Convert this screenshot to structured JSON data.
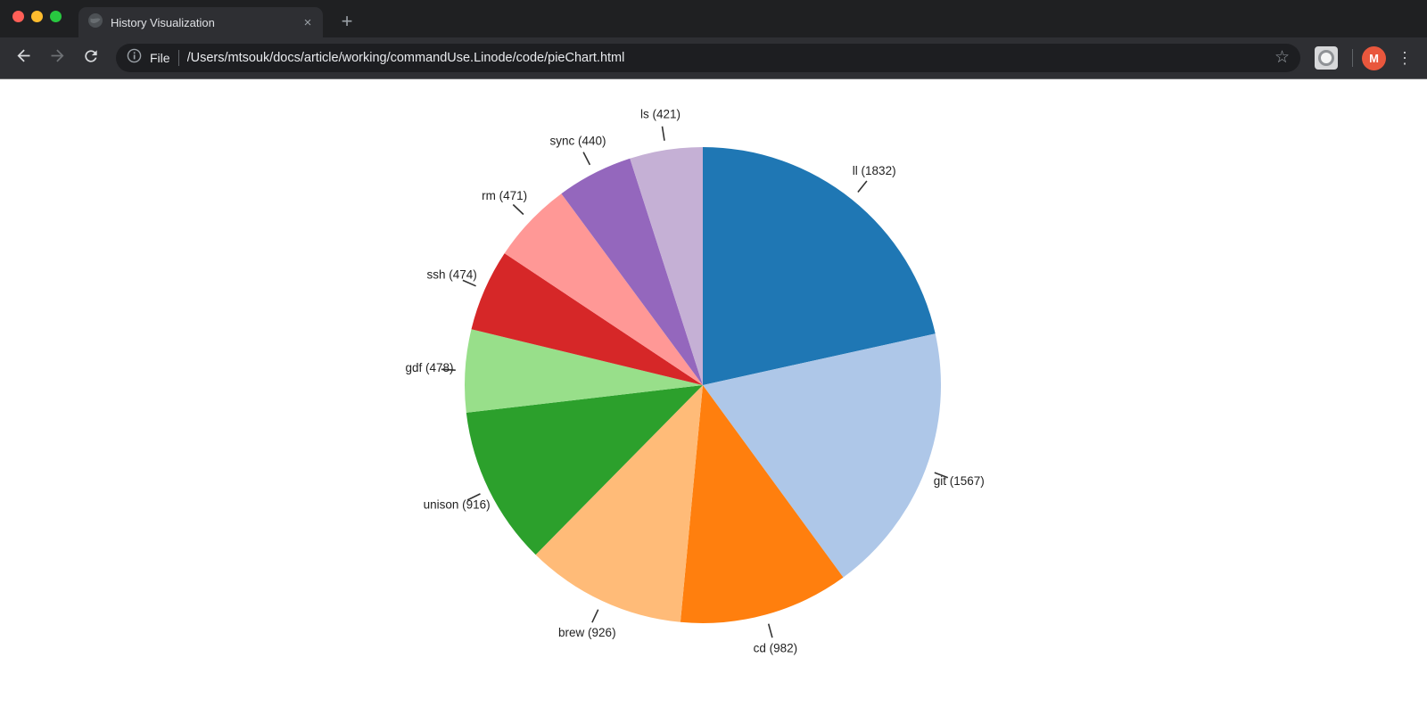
{
  "browser": {
    "tab": {
      "title": "History Visualization"
    },
    "toolbar": {
      "scheme_label": "File",
      "url": "/Users/mtsouk/docs/article/working/commandUse.Linode/code/pieChart.html"
    },
    "profile": {
      "initial": "M"
    },
    "icons": {
      "close_tab_glyph": "×",
      "new_tab_glyph": "+",
      "bookmark_star_glyph": "☆",
      "menu_kebab_glyph": "⋮"
    }
  },
  "chart_data": {
    "type": "pie",
    "title": "",
    "sort": "descending",
    "direction": "clockwise",
    "start_angle_deg": 0,
    "label_format": "name (value)",
    "slices": [
      {
        "name": "ll",
        "value": 1832,
        "color": "#1f77b4"
      },
      {
        "name": "git",
        "value": 1567,
        "color": "#aec7e8"
      },
      {
        "name": "cd",
        "value": 982,
        "color": "#ff7f0e"
      },
      {
        "name": "brew",
        "value": 926,
        "color": "#ffbb78"
      },
      {
        "name": "unison",
        "value": 916,
        "color": "#2ca02c"
      },
      {
        "name": "gdf",
        "value": 478,
        "color": "#98df8a"
      },
      {
        "name": "ssh",
        "value": 474,
        "color": "#d62728"
      },
      {
        "name": "rm",
        "value": 471,
        "color": "#ff9896"
      },
      {
        "name": "sync",
        "value": 440,
        "color": "#9467bd"
      },
      {
        "name": "ls",
        "value": 421,
        "color": "#c5b0d5"
      }
    ],
    "label_color": "#222222",
    "tick_color": "#333333"
  }
}
